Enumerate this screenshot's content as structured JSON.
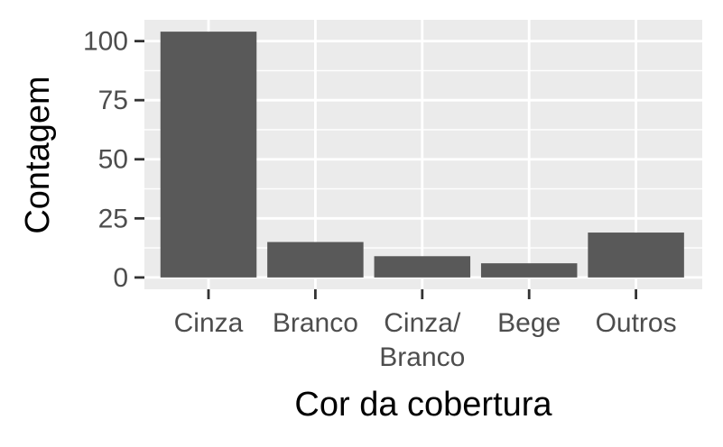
{
  "chart_data": {
    "type": "bar",
    "categories": [
      "Cinza",
      "Branco",
      "Cinza/\nBranco",
      "Bege",
      "Outros"
    ],
    "values": [
      104,
      15,
      9,
      6,
      19
    ],
    "title": "",
    "xlabel": "Cor da cobertura",
    "ylabel": "Contagem",
    "ylim": [
      -5,
      109
    ],
    "yticks": [
      0,
      25,
      50,
      75,
      100
    ],
    "grid": true,
    "legend": "none",
    "colors": {
      "bar": "#595959",
      "panel": "#ebebeb",
      "grid": "#ffffff",
      "tick": "#333333"
    }
  }
}
